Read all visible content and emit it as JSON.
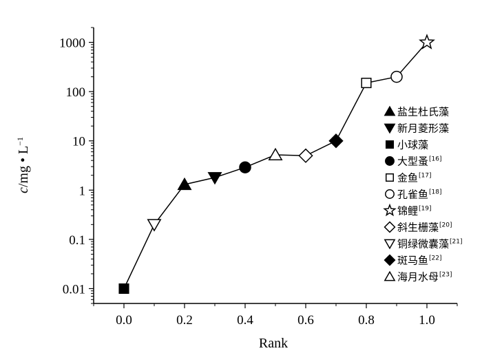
{
  "chart_data": {
    "type": "scatter",
    "xlabel": "Rank",
    "ylabel": "c/mg • L⁻¹",
    "yscale": "log",
    "xlim": [
      -0.1,
      1.1
    ],
    "ylim": [
      0.005,
      2000
    ],
    "x_ticks": [
      "0.0",
      "0.2",
      "0.4",
      "0.6",
      "0.8",
      "1.0"
    ],
    "y_ticks": [
      "0.01",
      "0.1",
      "1",
      "10",
      "100",
      "1000"
    ],
    "grid": false,
    "legend_position": "right",
    "series": [
      {
        "name": "盐生杜氏藻",
        "ref": "",
        "marker": "triangle-up-filled",
        "x": 0.2,
        "y": 1.3
      },
      {
        "name": "新月菱形藻",
        "ref": "",
        "marker": "triangle-down-filled",
        "x": 0.3,
        "y": 1.8
      },
      {
        "name": "小球藻",
        "ref": "",
        "marker": "square-filled",
        "x": 0.0,
        "y": 0.01
      },
      {
        "name": "大型蚤",
        "ref": "[16]",
        "marker": "circle-filled",
        "x": 0.4,
        "y": 2.9
      },
      {
        "name": "金鱼",
        "ref": "[17]",
        "marker": "square-open",
        "x": 0.8,
        "y": 150
      },
      {
        "name": "孔雀鱼",
        "ref": "[18]",
        "marker": "circle-open",
        "x": 0.9,
        "y": 200
      },
      {
        "name": "锦鲤",
        "ref": "[19]",
        "marker": "star-open",
        "x": 1.0,
        "y": 1000
      },
      {
        "name": "斜生栅藻",
        "ref": "[20]",
        "marker": "diamond-open",
        "x": 0.6,
        "y": 5
      },
      {
        "name": "铜绿微囊藻",
        "ref": "[21]",
        "marker": "triangle-down-open",
        "x": 0.1,
        "y": 0.2
      },
      {
        "name": "斑马鱼",
        "ref": "[22]",
        "marker": "diamond-filled",
        "x": 0.7,
        "y": 10
      },
      {
        "name": "海月水母",
        "ref": "[23]",
        "marker": "triangle-up-open",
        "x": 0.5,
        "y": 5.2
      }
    ]
  }
}
